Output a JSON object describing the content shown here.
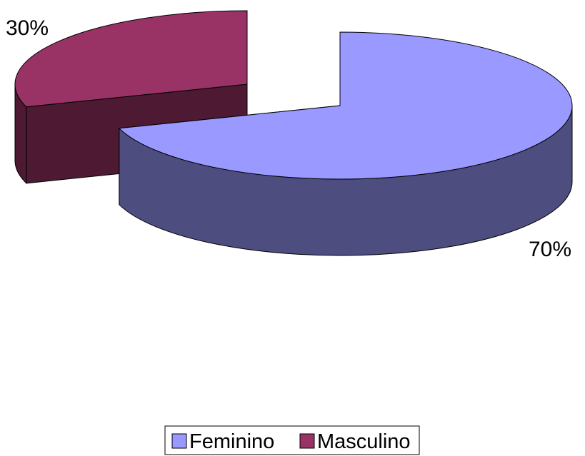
{
  "chart_data": {
    "type": "pie",
    "style": "3d-exploded",
    "title": "",
    "categories": [
      "Feminino",
      "Masculino"
    ],
    "values": [
      70,
      30
    ],
    "data_labels": [
      "70%",
      "30%"
    ],
    "colors": {
      "Feminino": {
        "top": "#9999FF",
        "side": "#4D4D80"
      },
      "Masculino": {
        "top": "#993366",
        "side": "#4D1933"
      }
    },
    "legend": {
      "position": "bottom",
      "entries": [
        "Feminino",
        "Masculino"
      ]
    }
  }
}
